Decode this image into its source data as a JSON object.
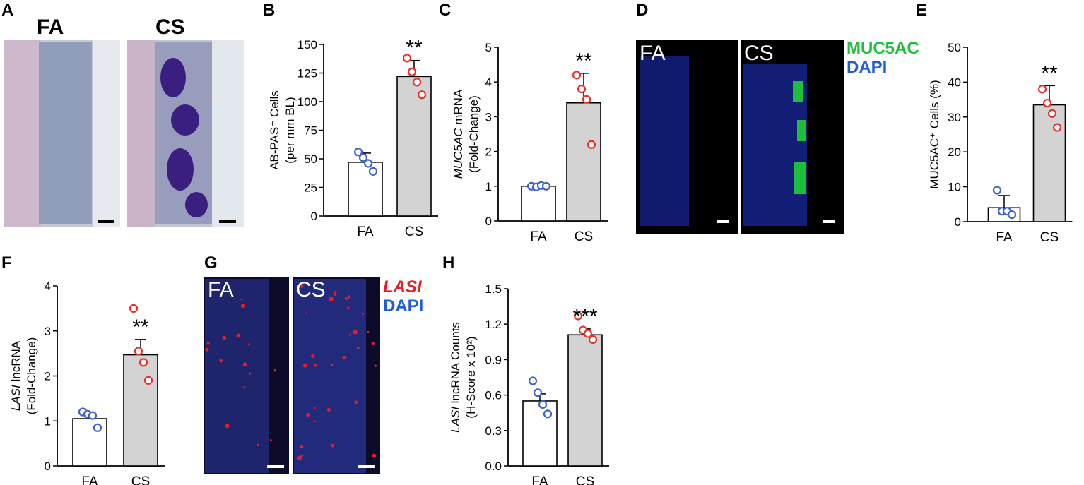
{
  "panel_labels": [
    "A",
    "B",
    "C",
    "D",
    "E",
    "F",
    "G",
    "H"
  ],
  "colors": {
    "fa_point": "#3f62c8",
    "cs_point": "#e8302a",
    "fa_bar": "#ffffff",
    "cs_bar": "#d3d3d3",
    "muc5ac": "#1ebe3c",
    "lasi": "#e41e26",
    "dapi": "#1f5dd6"
  },
  "images": {
    "A": {
      "left": "FA",
      "right": "CS"
    },
    "D": {
      "left": "FA",
      "right": "CS",
      "stain1": "MUC5AC",
      "stain2": "DAPI"
    },
    "G": {
      "left": "FA",
      "right": "CS",
      "stain1": "LASI",
      "stain2": "DAPI"
    }
  },
  "chart_data": [
    {
      "panel": "B",
      "type": "bar",
      "categories": [
        "FA",
        "CS"
      ],
      "values": [
        47,
        122
      ],
      "errors": [
        8,
        14
      ],
      "points": [
        [
          56,
          51,
          46,
          39
        ],
        [
          138,
          126,
          117,
          106
        ]
      ],
      "ylabel_line1": "AB-PAS⁺ Cells",
      "ylabel_line2": "(per mm BL)",
      "ylim": [
        0,
        150
      ],
      "yticks": [
        "0",
        "25",
        "50",
        "75",
        "100",
        "125",
        "150"
      ],
      "significance": "**"
    },
    {
      "panel": "C",
      "type": "bar",
      "categories": [
        "FA",
        "CS"
      ],
      "values": [
        1.0,
        3.4
      ],
      "errors": [
        0.07,
        0.85
      ],
      "points": [
        [
          1.0,
          0.98,
          1.02,
          1.0
        ],
        [
          4.2,
          3.8,
          3.5,
          2.2
        ]
      ],
      "ylabel_line1": "MUC5AC mRNA",
      "ylabel_line2": "(Fold-Change)",
      "ylim": [
        0,
        5
      ],
      "yticks": [
        "0",
        "1",
        "2",
        "3",
        "4",
        "5"
      ],
      "significance": "**"
    },
    {
      "panel": "E",
      "type": "bar",
      "categories": [
        "FA",
        "CS"
      ],
      "values": [
        4,
        33.5
      ],
      "errors": [
        3.5,
        5.5
      ],
      "points": [
        [
          9,
          3,
          3,
          2
        ],
        [
          38,
          34,
          31,
          27
        ]
      ],
      "ylabel_line1": "MUC5AC⁺ Cells (%)",
      "ylabel_line2": "",
      "ylim": [
        0,
        50
      ],
      "yticks": [
        "0",
        "10",
        "20",
        "30",
        "40",
        "50"
      ],
      "significance": "**"
    },
    {
      "panel": "F",
      "type": "bar",
      "categories": [
        "FA",
        "CS"
      ],
      "values": [
        1.05,
        2.47
      ],
      "errors": [
        0.12,
        0.34
      ],
      "points": [
        [
          1.2,
          1.15,
          1.12,
          0.85
        ],
        [
          3.5,
          2.55,
          2.3,
          1.9
        ]
      ],
      "ylabel_line1": "LASI lncRNA",
      "ylabel_line2": "(Fold-Change)",
      "ylim": [
        0,
        4
      ],
      "yticks": [
        "0",
        "1",
        "2",
        "3",
        "4"
      ],
      "significance": "**"
    },
    {
      "panel": "H",
      "type": "bar",
      "categories": [
        "FA",
        "CS"
      ],
      "values": [
        0.55,
        1.11
      ],
      "errors": [
        0.06,
        0.05
      ],
      "points": [
        [
          0.72,
          0.62,
          0.52,
          0.44
        ],
        [
          1.27,
          1.15,
          1.12,
          1.07
        ]
      ],
      "ylabel_line1": "LASI lncRNA Counts",
      "ylabel_line2": "(H-Score x 10²)",
      "ylim": [
        0,
        1.5
      ],
      "yticks": [
        "0.0",
        "0.3",
        "0.6",
        "0.9",
        "1.2",
        "1.5"
      ],
      "significance": "***"
    }
  ]
}
